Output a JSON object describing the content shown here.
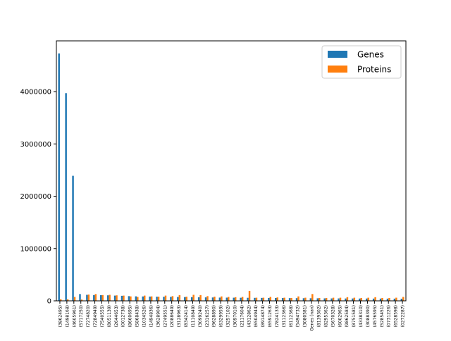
{
  "chart_data": {
    "type": "bar",
    "title": "",
    "xlabel": "",
    "ylabel": "",
    "ylim": [
      0,
      4970000
    ],
    "yticks": [
      0,
      1000000,
      2000000,
      3000000,
      4000000
    ],
    "ytick_labels": [
      "0",
      "1000000",
      "2000000",
      "3000000",
      "4000000"
    ],
    "legend_position": "top-right",
    "grid": false,
    "categories": [
      "(3862495)",
      "(1498168)",
      "(4605961)",
      "(5717250)",
      "(7274820)",
      "(7284949)",
      "(7540555)",
      "(8051139)",
      "(2644653)",
      "(0012738)",
      "(8660695)",
      "(5868438)",
      "(1034526)",
      "(1494836)",
      "(3628904)",
      "(2749551)",
      "(2088649)",
      "(3128963)",
      "(8342414)",
      "(1110849)",
      "(3099240)",
      "(2316257)",
      "(9628890)",
      "(6329959)",
      "(3257102)",
      "(3097010)",
      "(2117604)",
      "(4312862)",
      "(6504944)",
      "(8914874)",
      "(6591263)",
      "(7824133)",
      "(3112366)",
      "(6112368)",
      "(5494732)",
      "(3080581)",
      "Genes (nan)",
      "(8139302)",
      "(8295362)",
      "(5670328)",
      "(6002965)",
      "(9862584)",
      "(8751581)",
      "(4338310)",
      "(3088390)",
      "(4576595)",
      "(5285451)",
      "(0731226)",
      "(6528598)",
      "(0272287)"
    ],
    "series": [
      {
        "name": "Genes",
        "color": "#1f77b4",
        "values": [
          4730000,
          3970000,
          2390000,
          130000,
          115000,
          110000,
          108000,
          105000,
          100000,
          96000,
          90000,
          86000,
          84000,
          82000,
          80000,
          78000,
          76000,
          74000,
          72000,
          70000,
          68000,
          66000,
          64000,
          62000,
          61000,
          60000,
          59000,
          58000,
          57000,
          56000,
          55000,
          54000,
          53000,
          52000,
          51000,
          50000,
          49000,
          48000,
          47000,
          46000,
          46000,
          45000,
          45000,
          44000,
          44000,
          43000,
          43000,
          42000,
          42000,
          41000
        ]
      },
      {
        "name": "Proteins",
        "color": "#ff7f0e",
        "values": [
          30000,
          30000,
          75000,
          25000,
          120000,
          130000,
          110000,
          115000,
          105000,
          100000,
          85000,
          75000,
          100000,
          85000,
          80000,
          100000,
          90000,
          110000,
          80000,
          115000,
          110000,
          90000,
          80000,
          85000,
          75000,
          70000,
          75000,
          190000,
          60000,
          60000,
          75000,
          65000,
          60000,
          55000,
          85000,
          60000,
          130000,
          55000,
          55000,
          60000,
          60000,
          70000,
          60000,
          55000,
          60000,
          70000,
          55000,
          55000,
          60000,
          75000
        ]
      }
    ]
  }
}
